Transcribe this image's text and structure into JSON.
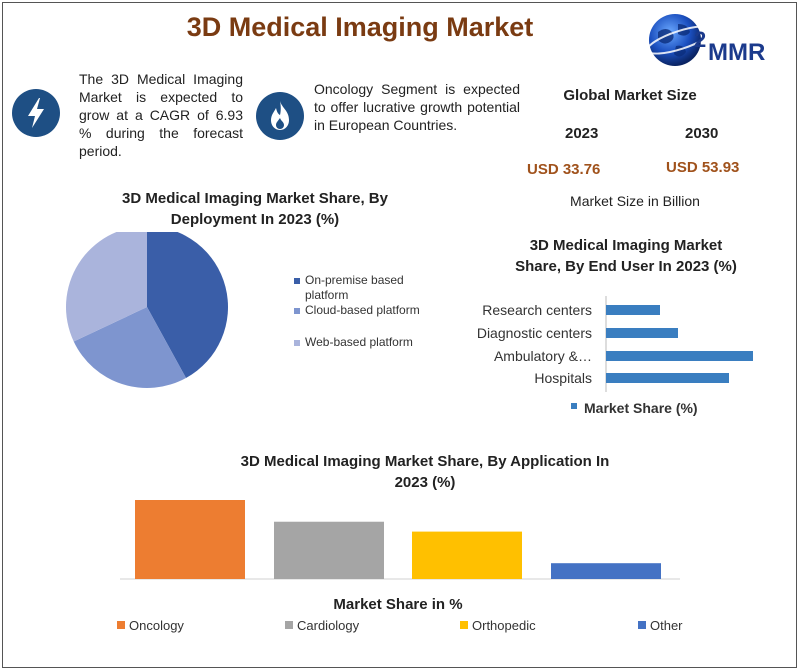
{
  "header": {
    "title": "3D Medical Imaging Market"
  },
  "logo": {
    "text": "MMR",
    "number": "2"
  },
  "info": [
    {
      "icon": "lightning-icon",
      "text": "The 3D Medical Imaging Market is expected to grow at a CAGR of 6.93 % during the forecast period."
    },
    {
      "icon": "flame-icon",
      "text": "Oncology Segment is expected to offer lucrative growth potential in European Countries."
    }
  ],
  "global_market": {
    "title": "Global Market Size",
    "year_a": "2023",
    "year_b": "2030",
    "value_a": "USD 33.76",
    "value_b": "USD 53.93",
    "note": "Market Size in Billion"
  },
  "colors": {
    "title": "#7a3b12",
    "accent_value": "#a0521c",
    "icon_bg": "#1e4f84",
    "pie": [
      "#3a5ea8",
      "#7e95cf",
      "#aab4dc"
    ],
    "enduser_bar": "#3a7ec0",
    "app": [
      "#ed7d31",
      "#a5a5a5",
      "#ffc000",
      "#4472c4"
    ]
  },
  "chart_data": [
    {
      "type": "pie",
      "title": "3D Medical Imaging Market Share, By Deployment In 2023 (%)",
      "categories": [
        "On-premise based platform",
        "Cloud-based platform",
        "Web-based platform"
      ],
      "values": [
        42,
        26,
        32
      ],
      "legend": "right"
    },
    {
      "type": "bar",
      "orientation": "horizontal",
      "title": "3D Medical Imaging Market Share, By End User In 2023 (%)",
      "categories": [
        "Research centers",
        "Diagnostic centers",
        "Ambulatory &…",
        "Hospitals"
      ],
      "series": [
        {
          "name": "Market Share (%)",
          "values": [
            18,
            24,
            49,
            41
          ]
        }
      ],
      "xlim": [
        0,
        50
      ],
      "legend": "bottom"
    },
    {
      "type": "bar",
      "title": "3D Medical Imaging Market Share, By Application In 2023 (%)",
      "xlabel": "Market Share in %",
      "categories": [
        "Oncology",
        "Cardiology",
        "Orthopedic",
        "Other"
      ],
      "values": [
        40,
        29,
        24,
        8
      ],
      "ylim": [
        0,
        40
      ],
      "legend": "bottom"
    }
  ]
}
